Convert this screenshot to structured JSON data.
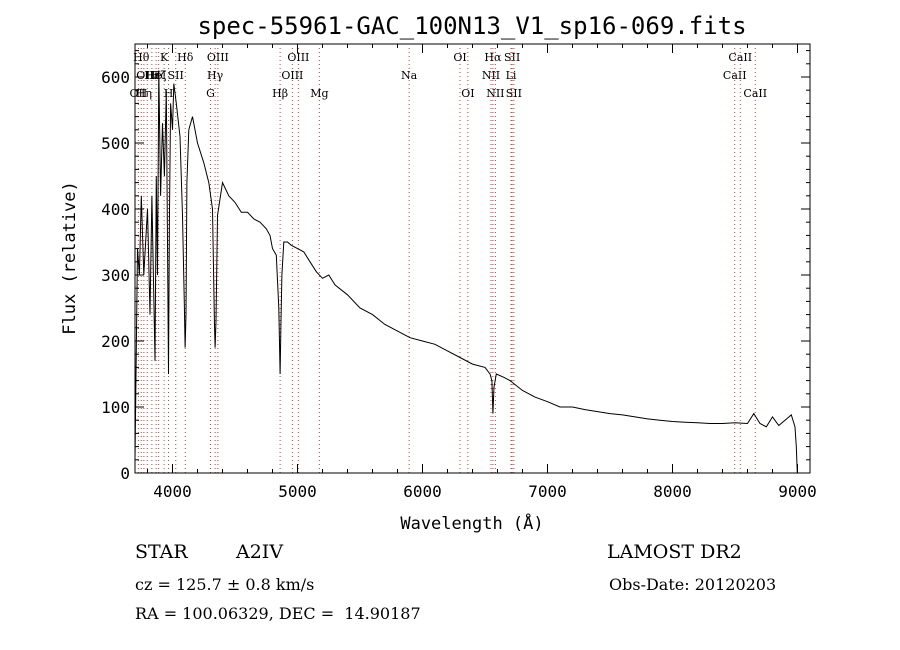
{
  "chart_data": {
    "type": "line",
    "title": "spec-55961-GAC_100N13_V1_sp16-069.fits",
    "xlabel": "Wavelength (Å)",
    "ylabel": "Flux (relative)",
    "xlim": [
      3700,
      9100
    ],
    "ylim": [
      0,
      650
    ],
    "x_ticks": [
      4000,
      5000,
      6000,
      7000,
      8000,
      9000
    ],
    "y_ticks": [
      0,
      100,
      200,
      300,
      400,
      500,
      600
    ],
    "grid": false,
    "line_color": "#000000",
    "marker_color": "#c04040",
    "series": [
      {
        "x": [
          3700,
          3720,
          3735,
          3750,
          3770,
          3800,
          3820,
          3835,
          3860,
          3870,
          3880,
          3890,
          3905,
          3920,
          3935,
          3950,
          3960,
          3968,
          3975,
          3985,
          4000,
          4010,
          4030,
          4060,
          4080,
          4095,
          4101,
          4108,
          4115,
          4130,
          4160,
          4200,
          4250,
          4290,
          4320,
          4335,
          4341,
          4348,
          4360,
          4400,
          4450,
          4500,
          4550,
          4600,
          4650,
          4700,
          4750,
          4780,
          4800,
          4830,
          4850,
          4861,
          4868,
          4875,
          4890,
          4920,
          4950,
          5000,
          5050,
          5100,
          5150,
          5200,
          5250,
          5300,
          5400,
          5500,
          5600,
          5700,
          5800,
          5900,
          6000,
          6100,
          6200,
          6300,
          6400,
          6500,
          6540,
          6555,
          6563,
          6572,
          6590,
          6650,
          6700,
          6800,
          6900,
          7000,
          7100,
          7200,
          7300,
          7400,
          7500,
          7600,
          7700,
          7800,
          7900,
          8000,
          8100,
          8200,
          8300,
          8400,
          8500,
          8600,
          8650,
          8700,
          8750,
          8800,
          8850,
          8900,
          8950,
          8980,
          8990,
          8998
        ],
        "y": [
          20,
          340,
          300,
          420,
          300,
          400,
          240,
          420,
          170,
          450,
          300,
          610,
          420,
          530,
          450,
          580,
          350,
          150,
          380,
          560,
          520,
          590,
          560,
          510,
          390,
          250,
          190,
          240,
          440,
          520,
          540,
          500,
          470,
          440,
          400,
          230,
          190,
          230,
          390,
          440,
          420,
          410,
          395,
          395,
          385,
          380,
          370,
          360,
          340,
          330,
          250,
          150,
          230,
          300,
          350,
          350,
          345,
          340,
          335,
          320,
          305,
          295,
          300,
          285,
          270,
          250,
          240,
          225,
          215,
          205,
          200,
          195,
          185,
          175,
          165,
          160,
          150,
          140,
          90,
          130,
          150,
          145,
          140,
          125,
          115,
          108,
          100,
          100,
          96,
          93,
          90,
          88,
          85,
          82,
          80,
          78,
          77,
          76,
          75,
          75,
          76,
          75,
          90,
          75,
          70,
          85,
          72,
          80,
          88,
          70,
          40,
          0
        ]
      }
    ],
    "line_markers": [
      {
        "wavelength": 3727,
        "label": "OII",
        "row": 2
      },
      {
        "wavelength": 3750,
        "label": "Hθ",
        "row": 0
      },
      {
        "wavelength": 3771,
        "label": "Hη",
        "row": 2
      },
      {
        "wavelength": 3798,
        "label": "OIII",
        "row": 1
      },
      {
        "wavelength": 3835,
        "label": "Hε",
        "row": 1
      },
      {
        "wavelength": 3869,
        "label": "HeI",
        "row": 1
      },
      {
        "wavelength": 3889,
        "label": "Hζ",
        "row": 1
      },
      {
        "wavelength": 3933,
        "label": "K",
        "row": 0
      },
      {
        "wavelength": 3968,
        "label": "H",
        "row": 2
      },
      {
        "wavelength": 4026,
        "label": "SII",
        "row": 1
      },
      {
        "wavelength": 4102,
        "label": "Hδ",
        "row": 0
      },
      {
        "wavelength": 4304,
        "label": "G",
        "row": 2
      },
      {
        "wavelength": 4341,
        "label": "Hγ",
        "row": 1
      },
      {
        "wavelength": 4363,
        "label": "OIII",
        "row": 0
      },
      {
        "wavelength": 4861,
        "label": "Hβ",
        "row": 2
      },
      {
        "wavelength": 4959,
        "label": "OIII",
        "row": 1
      },
      {
        "wavelength": 5007,
        "label": "OIII",
        "row": 0
      },
      {
        "wavelength": 5175,
        "label": "Mg",
        "row": 2
      },
      {
        "wavelength": 5893,
        "label": "Na",
        "row": 1
      },
      {
        "wavelength": 6300,
        "label": "OI",
        "row": 0
      },
      {
        "wavelength": 6363,
        "label": "OI",
        "row": 2
      },
      {
        "wavelength": 6548,
        "label": "NII",
        "row": 1
      },
      {
        "wavelength": 6563,
        "label": "Hα",
        "row": 0
      },
      {
        "wavelength": 6583,
        "label": "NII",
        "row": 2
      },
      {
        "wavelength": 6708,
        "label": "Li",
        "row": 1
      },
      {
        "wavelength": 6717,
        "label": "SII",
        "row": 0
      },
      {
        "wavelength": 6731,
        "label": "SII",
        "row": 2
      },
      {
        "wavelength": 8498,
        "label": "CaII",
        "row": 1
      },
      {
        "wavelength": 8542,
        "label": "CaII",
        "row": 0
      },
      {
        "wavelength": 8662,
        "label": "CaII",
        "row": 2
      }
    ]
  },
  "info": {
    "object_class": "STAR",
    "subclass": "A2IV",
    "survey": "LAMOST DR2",
    "cz": "cz = 125.7 ± 0.8 km/s",
    "obs_date": "Obs-Date: 20120203",
    "coords": "RA = 100.06329, DEC =  14.90187"
  }
}
